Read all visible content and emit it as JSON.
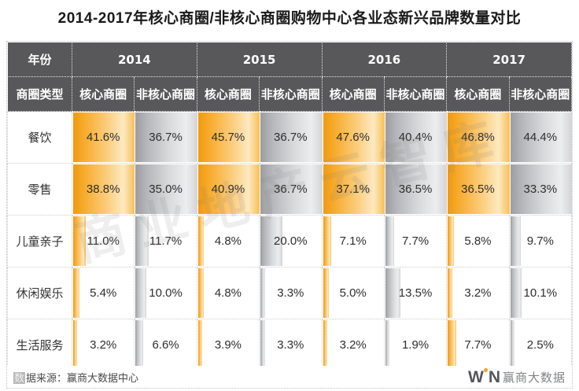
{
  "title": "2014-2017年核心商圈/非核心商圈购物中心各业态新兴品牌数量对比",
  "watermark": "商业地产云智库",
  "table_labels": {
    "year": "年份",
    "type": "商圈类型"
  },
  "chart_data": {
    "type": "table",
    "title": "2014-2017年核心商圈/非核心商圈购物中心各业态新兴品牌数量对比",
    "unit": "%",
    "row_categories": [
      "餐饮",
      "零售",
      "儿童亲子",
      "休闲娱乐",
      "生活服务"
    ],
    "column_groups": [
      "2014",
      "2015",
      "2016",
      "2017"
    ],
    "column_subgroups": [
      "核心商圈",
      "非核心商圈"
    ],
    "series": [
      {
        "name": "2014 核心商圈",
        "values": [
          41.6,
          38.8,
          11.0,
          5.4,
          3.2
        ]
      },
      {
        "name": "2014 非核心商圈",
        "values": [
          36.7,
          35.0,
          11.7,
          10.0,
          6.6
        ]
      },
      {
        "name": "2015 核心商圈",
        "values": [
          45.7,
          40.9,
          4.8,
          4.8,
          3.9
        ]
      },
      {
        "name": "2015 非核心商圈",
        "values": [
          36.7,
          36.7,
          20.0,
          3.3,
          3.3
        ]
      },
      {
        "name": "2016 核心商圈",
        "values": [
          47.6,
          37.1,
          7.1,
          5.0,
          3.2
        ]
      },
      {
        "name": "2016 非核心商圈",
        "values": [
          40.4,
          36.5,
          7.7,
          13.5,
          1.9
        ]
      },
      {
        "name": "2017 核心商圈",
        "values": [
          46.8,
          36.5,
          5.8,
          3.2,
          7.7
        ]
      },
      {
        "name": "2017 非核心商圈",
        "values": [
          44.4,
          33.3,
          9.7,
          10.1,
          2.5
        ]
      }
    ],
    "legend_position": "none",
    "grid": "dotted"
  },
  "colors": {
    "header_bg": "#58585a",
    "core_bar_orange": "#f5a21d",
    "noncore_bar_gray": "#a6a8ab",
    "value_text": "#2e2e2e"
  },
  "footer": {
    "source_first": "数",
    "source_rest": "据来源：赢商大数据中心",
    "brand_w": "W",
    "brand_n": "N",
    "brand_name": "赢商大数据"
  }
}
